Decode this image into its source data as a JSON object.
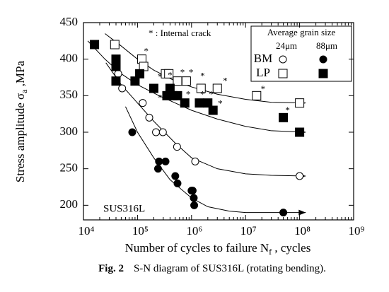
{
  "chart_data": {
    "type": "scatter",
    "annotation": "* : Internal crack",
    "material_label": "SUS316L",
    "ylabel": {
      "main": "Stress amplitude σ",
      "sub": "a",
      "tail": " ,MPa"
    },
    "xlabel": {
      "main": "Number of cycles to failure N",
      "sub": "f",
      "tail": " , cycles"
    },
    "caption": {
      "bold": "Fig. 2",
      "text": "S-N diagram of SUS316L (rotating bending)."
    },
    "legend": {
      "title": "Average grain size",
      "corner": "top-right"
    },
    "log_x": true,
    "xlim": [
      10000,
      1000000000
    ],
    "xticks": [
      {
        "value": 10000,
        "label": "10⁴"
      },
      {
        "value": 100000,
        "label": "10⁵"
      },
      {
        "value": 1000000,
        "label": "10⁶"
      },
      {
        "value": 10000000,
        "label": "10⁷"
      },
      {
        "value": 100000000,
        "label": "10⁸"
      },
      {
        "value": 1000000000,
        "label": "10⁹"
      }
    ],
    "ylim": [
      180,
      450
    ],
    "yticks": [
      200,
      250,
      300,
      350,
      400,
      450
    ],
    "series": [
      {
        "name": "BM",
        "grain_size": "24μm",
        "marker": "circle",
        "filled": false,
        "color": "#000000",
        "x": [
          44000,
          52000,
          125000,
          165000,
          220000,
          295000,
          540000,
          1170000,
          100000000
        ],
        "values": [
          380,
          360,
          340,
          320,
          300,
          300,
          280,
          260,
          240
        ]
      },
      {
        "name": "BM",
        "grain_size": "88μm",
        "marker": "circle",
        "filled": true,
        "color": "#000000",
        "x": [
          80000,
          240000,
          250000,
          330000,
          500000,
          550000,
          1000000,
          1050000,
          1100000,
          1120000,
          50000000
        ],
        "values": [
          300,
          250,
          260,
          260,
          240,
          230,
          220,
          220,
          210,
          200,
          190
        ]
      },
      {
        "name": "LP",
        "grain_size": "24μm",
        "marker": "square",
        "filled": false,
        "color": "#000000",
        "x": [
          38000,
          120000,
          130000,
          330000,
          380000,
          550000,
          800000,
          1500000,
          3000000,
          16000000,
          100000000
        ],
        "values": [
          420,
          400,
          390,
          380,
          380,
          370,
          370,
          360,
          360,
          350,
          340
        ]
      },
      {
        "name": "LP",
        "grain_size": "88μm",
        "marker": "square",
        "filled": true,
        "color": "#000000",
        "x": [
          16000,
          40000,
          40000,
          40000,
          90000,
          110000,
          200000,
          350000,
          400000,
          450000,
          550000,
          750000,
          1400000,
          2000000,
          2500000,
          50000000,
          100000000
        ],
        "values": [
          420,
          400,
          390,
          370,
          370,
          380,
          360,
          350,
          360,
          350,
          350,
          340,
          340,
          340,
          330,
          320,
          300
        ]
      }
    ],
    "fit_curves": [
      {
        "x": [
          26000,
          50000,
          100000,
          200000,
          500000,
          1000000,
          3000000,
          10000000,
          30000000,
          130000000
        ],
        "values": [
          395,
          365,
          340,
          315,
          285,
          265,
          250,
          243,
          241,
          240
        ]
      },
      {
        "x": [
          60000,
          100000,
          200000,
          400000,
          1000000,
          2000000,
          5000000,
          10000000,
          30000000,
          130000000
        ],
        "values": [
          335,
          300,
          265,
          235,
          210,
          198,
          192,
          190,
          190,
          190
        ]
      },
      {
        "x": [
          25000,
          50000,
          100000,
          200000,
          500000,
          1000000,
          3000000,
          10000000,
          30000000,
          130000000
        ],
        "values": [
          435,
          418,
          400,
          385,
          370,
          362,
          352,
          345,
          341,
          340
        ]
      },
      {
        "x": [
          12000,
          25000,
          50000,
          100000,
          250000,
          500000,
          1000000,
          3000000,
          10000000,
          30000000,
          130000000
        ],
        "values": [
          425,
          400,
          380,
          365,
          350,
          340,
          330,
          318,
          308,
          302,
          300
        ]
      }
    ],
    "crack_marks": {
      "symbol": "*",
      "x": [
        145000,
        260000,
        260000,
        400000,
        680000,
        980000,
        1600000,
        870000,
        1600000,
        2300000,
        3400000,
        4200000,
        21000000,
        60000000
      ],
      "values": [
        410,
        375,
        346,
        377,
        381,
        381,
        376,
        351,
        351,
        351,
        338,
        369,
        358,
        329
      ]
    }
  }
}
